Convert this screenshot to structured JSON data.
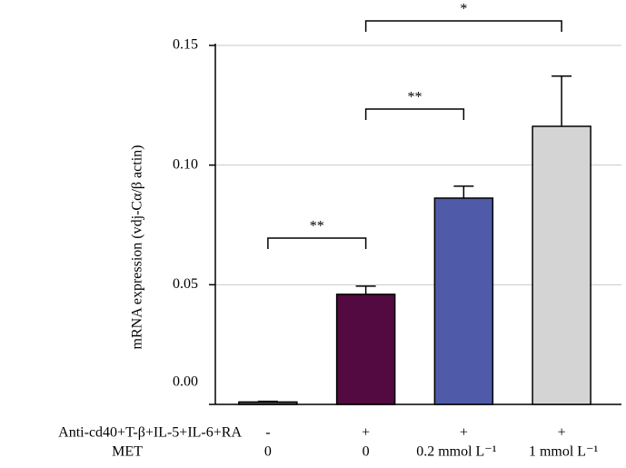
{
  "chart_data": {
    "type": "bar",
    "y_label": "mRNA expression (vdj-Cα/β actin)",
    "values": [
      0.001,
      0.046,
      0.0862,
      0.1162
    ],
    "errors": [
      0.0003,
      0.0034,
      0.005,
      0.021
    ],
    "colors": [
      "#555555",
      "#520a40",
      "#4f5aa8",
      "#d4d4d4"
    ],
    "ylim": [
      0,
      0.15
    ],
    "yticks": [
      {
        "value": 0,
        "label": "0.00"
      },
      0.05,
      {
        "value": 0.1,
        "label": "0.10"
      },
      0.15
    ],
    "grid": true,
    "treatments": [
      {
        "name": "Anti-cd40+T-β+IL-5+IL-6+RA",
        "levels": [
          "-",
          "+",
          "+",
          "+"
        ]
      },
      {
        "name": "MET",
        "levels": [
          "0",
          "0",
          "0.2 mmol L⁻¹",
          "1 mmol L⁻¹"
        ]
      }
    ],
    "annotations": [
      {
        "label": "**",
        "groups": [
          0,
          1
        ]
      },
      {
        "label": "**",
        "groups": [
          1,
          2
        ]
      },
      {
        "label": "*",
        "groups": [
          1,
          3
        ]
      }
    ]
  }
}
